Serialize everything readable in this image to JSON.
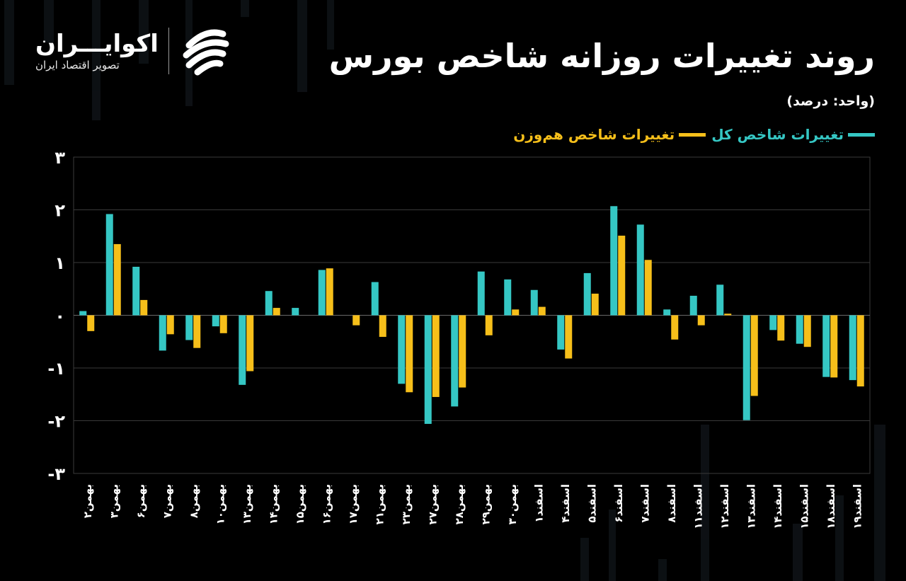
{
  "header": {
    "title": "روند تغییرات روزانه شاخص بورس",
    "unit": "(واحد: درصد)"
  },
  "logo": {
    "name": "اکوایـــران",
    "tagline": "تصویر اقتصاد ایران",
    "icon": "ecoiran-swoosh-icon"
  },
  "colors": {
    "background": "#000000",
    "total": "#35c7c4",
    "equal": "#f6bf1a",
    "grid": "#3a3a3a",
    "text": "#ffffff"
  },
  "chart_data": {
    "type": "bar",
    "title": "روند تغییرات روزانه شاخص بورس",
    "ylabel": "(واحد: درصد)",
    "ylim": [
      -3,
      3
    ],
    "yticks": [
      3,
      2,
      1,
      0,
      -1,
      -2,
      -3
    ],
    "ytick_labels": [
      "۳",
      "۲",
      "۱",
      "۰",
      "-۱",
      "-۲",
      "-۳"
    ],
    "grid": true,
    "legend_position": "top-right",
    "categories": [
      "بهمن۲",
      "بهمن۳",
      "بهمن۶",
      "بهمن۷",
      "بهمن۸",
      "بهمن۱۰",
      "بهمن۱۳",
      "بهمن۱۴",
      "بهمن۱۵",
      "بهمن۱۶",
      "بهمن۱۷",
      "بهمن۲۱",
      "بهمن۲۳",
      "بهمن۲۷",
      "بهمن۲۸",
      "بهمن۲۹",
      "بهمن۳۰",
      "اسفند۱",
      "اسفند۴",
      "اسفند۵",
      "اسفند۶",
      "اسفند۷",
      "اسفند۸",
      "اسفند۱۱",
      "اسفند۱۲",
      "اسفند۱۳",
      "اسفند۱۴",
      "اسفند۱۵",
      "اسفند۱۸",
      "اسفند۱۹"
    ],
    "series": [
      {
        "name": "تغییرات شاخص کل",
        "color": "#35c7c4",
        "values": [
          0.08,
          1.92,
          0.92,
          -0.67,
          -0.47,
          -0.21,
          -1.32,
          0.46,
          0.14,
          0.86,
          0.0,
          0.63,
          -1.3,
          -2.06,
          -1.73,
          0.83,
          0.68,
          0.48,
          -0.65,
          0.8,
          2.07,
          1.72,
          0.11,
          0.37,
          0.58,
          -1.99,
          -0.28,
          -0.54,
          -1.17,
          -1.23
        ]
      },
      {
        "name": "تغییرات شاخص هم‌وزن",
        "color": "#f6bf1a",
        "values": [
          -0.3,
          1.35,
          0.29,
          -0.36,
          -0.62,
          -0.34,
          -1.06,
          0.14,
          0.0,
          0.89,
          -0.19,
          -0.41,
          -1.46,
          -1.55,
          -1.37,
          -0.38,
          0.11,
          0.16,
          -0.82,
          0.41,
          1.51,
          1.05,
          -0.46,
          -0.19,
          0.03,
          -1.53,
          -0.48,
          -0.6,
          -1.18,
          -1.35
        ]
      }
    ]
  }
}
